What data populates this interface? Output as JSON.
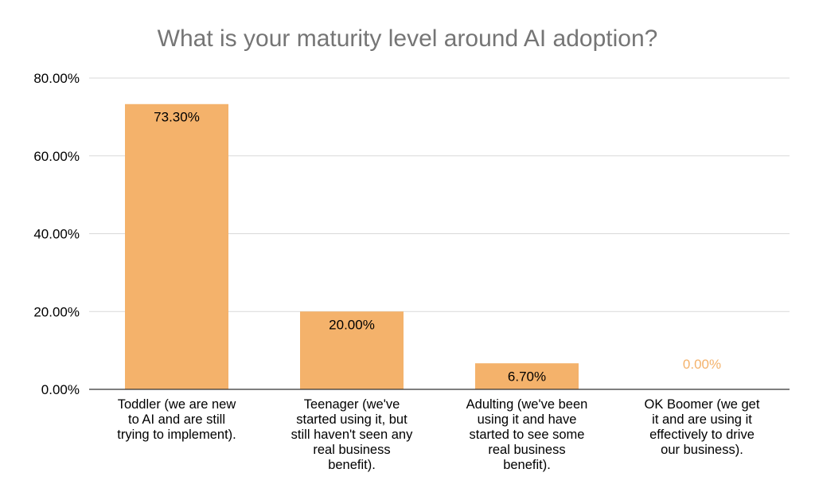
{
  "chart_data": {
    "type": "bar",
    "title": "What is your maturity level around AI adoption?",
    "xlabel": "",
    "ylabel": "",
    "categories": [
      "Toddler (we are new to AI and are still trying to implement).",
      "Teenager (we've started using it, but still haven't seen any real business benefit).",
      "Adulting (we've been using it and have started to see some real business benefit).",
      "OK Boomer (we get it and are using it effectively to drive our business)."
    ],
    "category_lines": [
      [
        "Toddler (we are new",
        "to AI and are still",
        "trying to implement)."
      ],
      [
        "Teenager (we've",
        "started using it, but",
        "still haven't seen any",
        "real business",
        "benefit)."
      ],
      [
        "Adulting (we've been",
        "using it and have",
        "started to see some",
        "real business",
        "benefit)."
      ],
      [
        "OK Boomer (we get",
        "it and are using it",
        "effectively to drive",
        "our business)."
      ]
    ],
    "values": [
      73.3,
      20.0,
      6.7,
      0.0
    ],
    "data_labels": [
      "73.30%",
      "20.00%",
      "6.70%",
      "0.00%"
    ],
    "y_ticks": [
      "0.00%",
      "20.00%",
      "40.00%",
      "60.00%",
      "80.00%"
    ],
    "y_tick_values": [
      0,
      20,
      40,
      60,
      80
    ],
    "ylim": [
      0,
      80
    ],
    "grid": true,
    "legend": "none",
    "colors": {
      "bar": "#F4B26B",
      "title": "#757575",
      "grid": "#D9D9D9",
      "axis": "#333333",
      "label_inside": "#000000",
      "label_zero": "#F4B26B"
    }
  }
}
